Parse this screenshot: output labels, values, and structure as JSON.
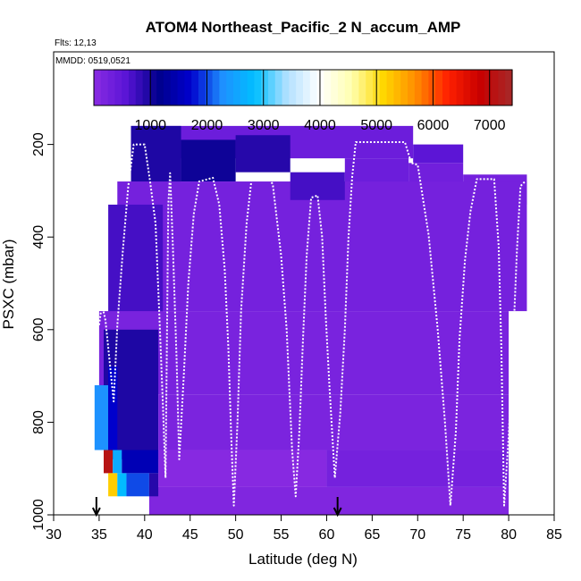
{
  "chart_data": {
    "type": "heatmap",
    "title": "ATOM4 Northeast_Pacific_2 N_accum_AMP",
    "flights_note": "Flts: 12,13",
    "dates_note": "MMDD: 0519,0521",
    "xlabel": "Latitude (deg N)",
    "ylabel": "PSXC (mbar)",
    "xlim": [
      30,
      85
    ],
    "ylim": [
      1000,
      0
    ],
    "x_ticks": [
      "30",
      "35",
      "40",
      "45",
      "50",
      "55",
      "60",
      "65",
      "70",
      "75",
      "80",
      "85"
    ],
    "y_ticks": [
      "200",
      "400",
      "600",
      "800",
      "1000"
    ],
    "colorbar": {
      "range": [
        0,
        7400
      ],
      "ticks": [
        "1000",
        "2000",
        "3000",
        "4000",
        "5000",
        "6000",
        "7000"
      ],
      "colors": [
        "#8a2be2",
        "#5a14d6",
        "#00008b",
        "#0000cd",
        "#1e90ff",
        "#00bfff",
        "#b0e0ff",
        "#ffffff",
        "#ffffb0",
        "#ffd700",
        "#ff8c00",
        "#ff2000",
        "#c80000",
        "#a52a2a"
      ]
    },
    "markers_latitude": [
      34.7,
      61.2
    ],
    "cells": [
      {
        "lat0": 38.5,
        "lat1": 69.5,
        "p0": 160,
        "p1": 230,
        "value": 350
      },
      {
        "lat0": 69.5,
        "lat1": 75,
        "p0": 200,
        "p1": 240,
        "value": 550
      },
      {
        "lat0": 38.5,
        "lat1": 44,
        "p0": 160,
        "p1": 330,
        "value": 950
      },
      {
        "lat0": 44,
        "lat1": 50,
        "p0": 190,
        "p1": 280,
        "value": 1050
      },
      {
        "lat0": 50,
        "lat1": 56,
        "p0": 180,
        "p1": 260,
        "value": 900
      },
      {
        "lat0": 62,
        "lat1": 69,
        "p0": 230,
        "p1": 290,
        "value": 350
      },
      {
        "lat0": 69,
        "lat1": 75,
        "p0": 240,
        "p1": 300,
        "value": 300
      },
      {
        "lat0": 75,
        "lat1": 82,
        "p0": 265,
        "p1": 330,
        "value": 250
      },
      {
        "lat0": 37,
        "lat1": 82,
        "p0": 280,
        "p1": 560,
        "value": 250
      },
      {
        "lat0": 36,
        "lat1": 42,
        "p0": 330,
        "p1": 600,
        "value": 700
      },
      {
        "lat0": 56,
        "lat1": 62,
        "p0": 260,
        "p1": 320,
        "value": 700
      },
      {
        "lat0": 35,
        "lat1": 80,
        "p0": 560,
        "p1": 740,
        "value": 200
      },
      {
        "lat0": 35.5,
        "lat1": 41.5,
        "p0": 600,
        "p1": 880,
        "value": 950
      },
      {
        "lat0": 41.5,
        "lat1": 80,
        "p0": 740,
        "p1": 860,
        "value": 180
      },
      {
        "lat0": 41.5,
        "lat1": 60,
        "p0": 860,
        "p1": 940,
        "value": 40
      },
      {
        "lat0": 60,
        "lat1": 80,
        "p0": 860,
        "p1": 940,
        "value": 250
      },
      {
        "lat0": 40.5,
        "lat1": 80,
        "p0": 940,
        "p1": 1000,
        "value": 120
      },
      {
        "lat0": 34.5,
        "lat1": 36,
        "p0": 720,
        "p1": 860,
        "value": 2300
      },
      {
        "lat0": 36,
        "lat1": 37,
        "p0": 680,
        "p1": 860,
        "value": 1700
      },
      {
        "lat0": 35.5,
        "lat1": 36.5,
        "p0": 860,
        "p1": 910,
        "value": 7100
      },
      {
        "lat0": 36.5,
        "lat1": 37.5,
        "p0": 860,
        "p1": 910,
        "value": 2600
      },
      {
        "lat0": 37.5,
        "lat1": 41.5,
        "p0": 860,
        "p1": 910,
        "value": 1500
      },
      {
        "lat0": 36,
        "lat1": 37,
        "p0": 910,
        "p1": 960,
        "value": 5200
      },
      {
        "lat0": 37,
        "lat1": 38,
        "p0": 910,
        "p1": 960,
        "value": 2800
      },
      {
        "lat0": 38,
        "lat1": 40.5,
        "p0": 910,
        "p1": 960,
        "value": 2000
      },
      {
        "lat0": 40.5,
        "lat1": 41.5,
        "p0": 910,
        "p1": 960,
        "value": 900
      }
    ],
    "flight_track": [
      [
        35,
        590
      ],
      [
        35.3,
        545
      ],
      [
        35.7,
        580
      ],
      [
        36.6,
        755
      ],
      [
        37,
        590
      ],
      [
        37.6,
        430
      ],
      [
        38.2,
        290
      ],
      [
        38.8,
        200
      ],
      [
        40,
        200
      ],
      [
        40.6,
        280
      ],
      [
        41.2,
        370
      ],
      [
        41.6,
        560
      ],
      [
        42,
        760
      ],
      [
        42.3,
        920
      ],
      [
        42.6,
        330
      ],
      [
        42.8,
        262
      ],
      [
        43.1,
        420
      ],
      [
        43.5,
        660
      ],
      [
        43.8,
        880
      ],
      [
        44.3,
        700
      ],
      [
        44.8,
        500
      ],
      [
        45.4,
        350
      ],
      [
        46,
        280
      ],
      [
        47.5,
        272
      ],
      [
        48.2,
        330
      ],
      [
        48.8,
        470
      ],
      [
        49.2,
        640
      ],
      [
        49.5,
        820
      ],
      [
        49.8,
        980
      ],
      [
        50.2,
        800
      ],
      [
        50.6,
        560
      ],
      [
        51.2,
        370
      ],
      [
        51.8,
        265
      ],
      [
        53.7,
        265
      ],
      [
        54.1,
        290
      ],
      [
        55,
        440
      ],
      [
        55.6,
        600
      ],
      [
        56.2,
        860
      ],
      [
        56.6,
        960
      ],
      [
        57,
        820
      ],
      [
        57.4,
        620
      ],
      [
        57.8,
        440
      ],
      [
        58.3,
        315
      ],
      [
        59,
        310
      ],
      [
        59.5,
        400
      ],
      [
        59.9,
        570
      ],
      [
        60.3,
        720
      ],
      [
        60.9,
        920
      ],
      [
        61.5,
        780
      ],
      [
        62,
        600
      ],
      [
        62.4,
        400
      ],
      [
        62.8,
        270
      ],
      [
        63.2,
        195
      ],
      [
        68.6,
        195
      ],
      [
        69.3,
        240
      ],
      [
        70,
        244
      ],
      [
        71.2,
        395
      ],
      [
        72.2,
        600
      ],
      [
        73,
        800
      ],
      [
        73.6,
        980
      ],
      [
        74.2,
        820
      ],
      [
        74.6,
        620
      ],
      [
        75.2,
        450
      ],
      [
        75.8,
        345
      ],
      [
        76.5,
        275
      ],
      [
        78.4,
        275
      ],
      [
        78.9,
        420
      ],
      [
        79.2,
        640
      ],
      [
        79.5,
        980
      ],
      [
        80,
        830
      ],
      [
        80.5,
        620
      ],
      [
        80.9,
        430
      ],
      [
        81.3,
        290
      ],
      [
        81.8,
        280
      ]
    ]
  }
}
